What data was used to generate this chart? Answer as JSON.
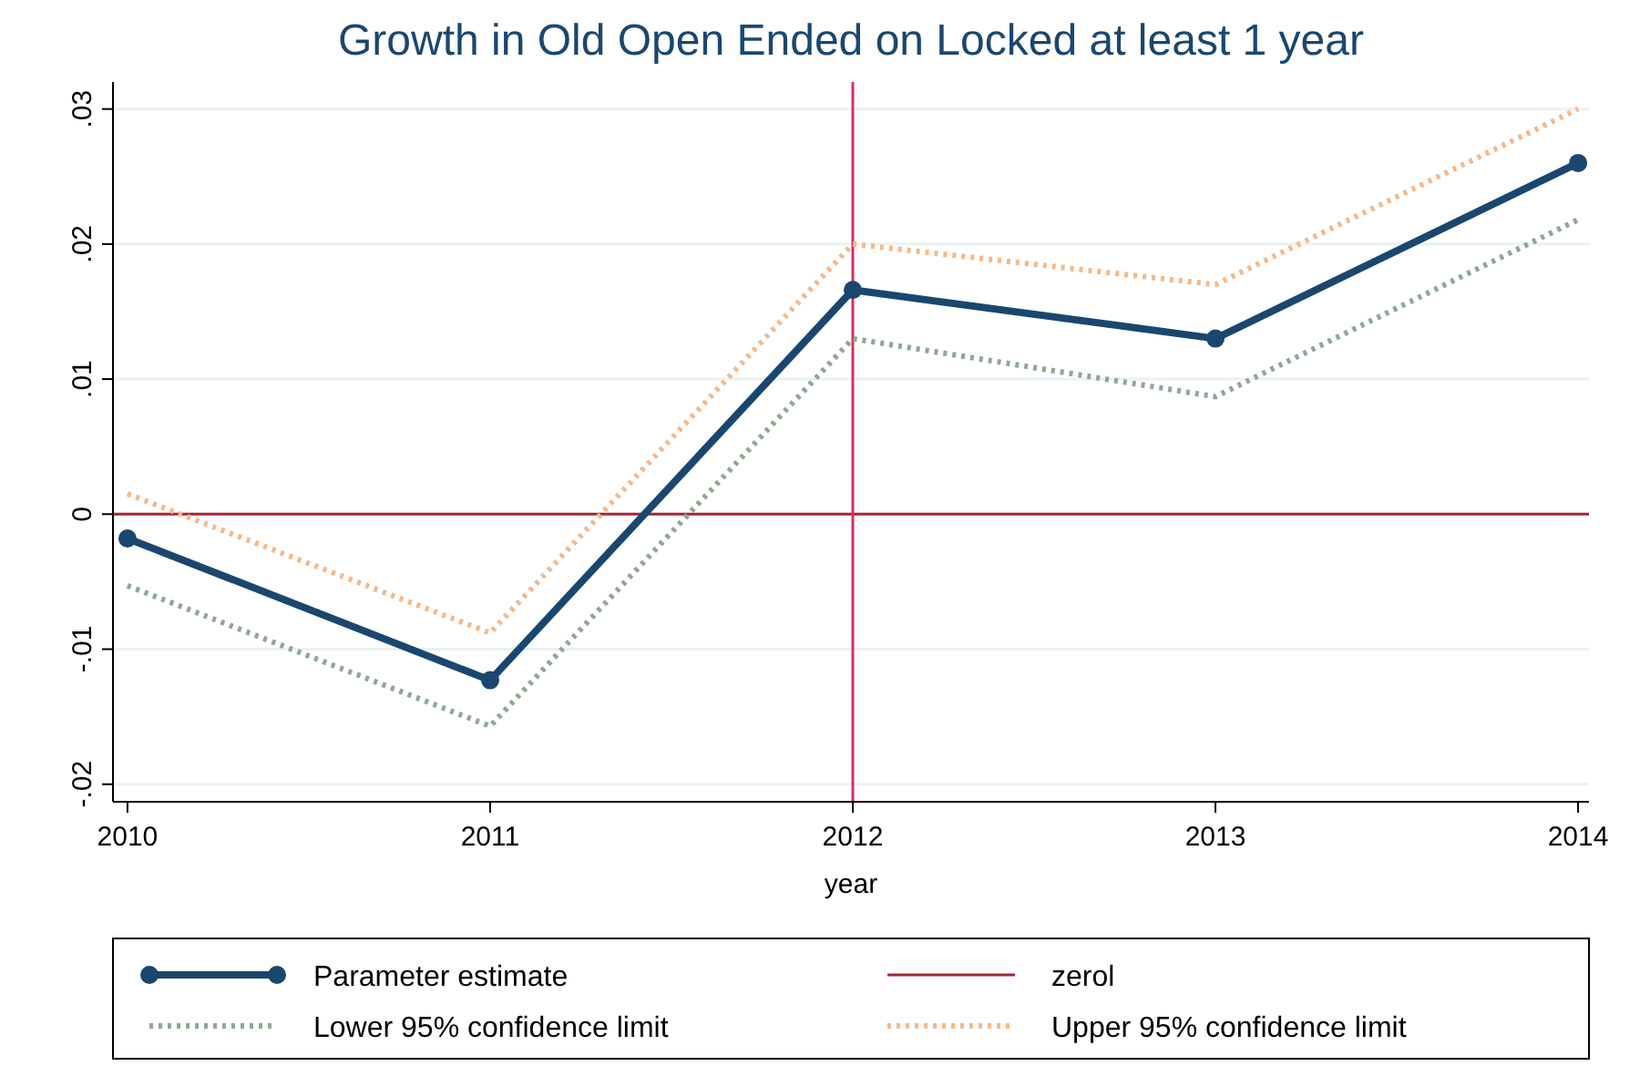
{
  "chart_data": {
    "type": "line",
    "title": "Growth in Old Open Ended on Locked at least 1 year",
    "xlabel": "year",
    "x": [
      2010,
      2011,
      2012,
      2013,
      2014
    ],
    "series": [
      {
        "name": "Parameter estimate",
        "color": "#1a476f",
        "values": [
          -0.0018,
          -0.0123,
          0.0166,
          0.013,
          0.026
        ],
        "marker": "circle",
        "line_style": "solid"
      },
      {
        "name": "Lower 95% confidence limit",
        "color": "#90a891",
        "values": [
          -0.0053,
          -0.0157,
          0.013,
          0.0087,
          0.0218
        ],
        "marker": "none",
        "line_style": "dotted"
      },
      {
        "name": "Upper 95% confidence limit",
        "color": "#f5b98a",
        "values": [
          0.0015,
          -0.0088,
          0.02,
          0.017,
          0.03
        ],
        "marker": "none",
        "line_style": "dotted"
      }
    ],
    "ref_lines": [
      {
        "axis": "y",
        "value": 0,
        "label": "zerol",
        "color": "#a32638"
      },
      {
        "axis": "x",
        "value": 2012,
        "color": "#d8305c"
      }
    ],
    "xlim": [
      2009.96,
      2014.03
    ],
    "xticks": [
      2010,
      2011,
      2012,
      2013,
      2014
    ],
    "ylim": [
      -0.0213,
      0.032
    ],
    "yticks": [
      {
        "value": 0.03,
        "label": ".03"
      },
      {
        "value": 0.02,
        "label": ".02"
      },
      {
        "value": 0.01,
        "label": ".01"
      },
      0,
      {
        "value": -0.01,
        "label": "-.01"
      },
      {
        "value": -0.02,
        "label": "-.02"
      }
    ],
    "grid": "y",
    "legend": "bottom"
  }
}
